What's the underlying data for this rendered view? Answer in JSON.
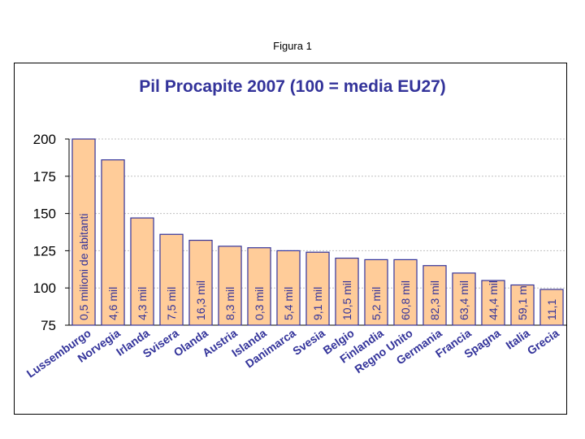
{
  "caption": "Figura 1",
  "chart_data": {
    "type": "bar",
    "title": "Pil Procapite 2007 (100 = media EU27)",
    "xlabel": "",
    "ylabel": "",
    "ylim": [
      75,
      200
    ],
    "yticks": [
      75,
      100,
      125,
      150,
      175,
      200
    ],
    "grid": true,
    "categories": [
      "Lussemburgo",
      "Norvegia",
      "Irlanda",
      "Svisera",
      "Olanda",
      "Austria",
      "Islanda",
      "Danimarca",
      "Svesia",
      "Belgio",
      "Finlandia",
      "Regno Unito",
      "Germania",
      "Francia",
      "Spagna",
      "Italia",
      "Grecia"
    ],
    "values": [
      200,
      186,
      147,
      136,
      132,
      128,
      127,
      125,
      124,
      120,
      119,
      119,
      115,
      110,
      105,
      102,
      99
    ],
    "bar_labels": [
      "0,5 milioni de abitanti",
      "4,6 mil",
      "4,3 mil",
      "7,5 mil",
      "16,3 mil",
      "8,3 mil",
      "0,3 mil",
      "5,4 mil",
      "9,1 mil",
      "10,5 mil",
      "5,2 mil",
      "60,8 mil",
      "82,3 mil",
      "63,4 mil",
      "44,4 mil",
      "59,1 m",
      "11,1"
    ],
    "colors": {
      "bar_fill": "#ffcc99",
      "bar_stroke": "#33339a",
      "text": "#33339a",
      "grid": "#c0c0c0"
    }
  }
}
